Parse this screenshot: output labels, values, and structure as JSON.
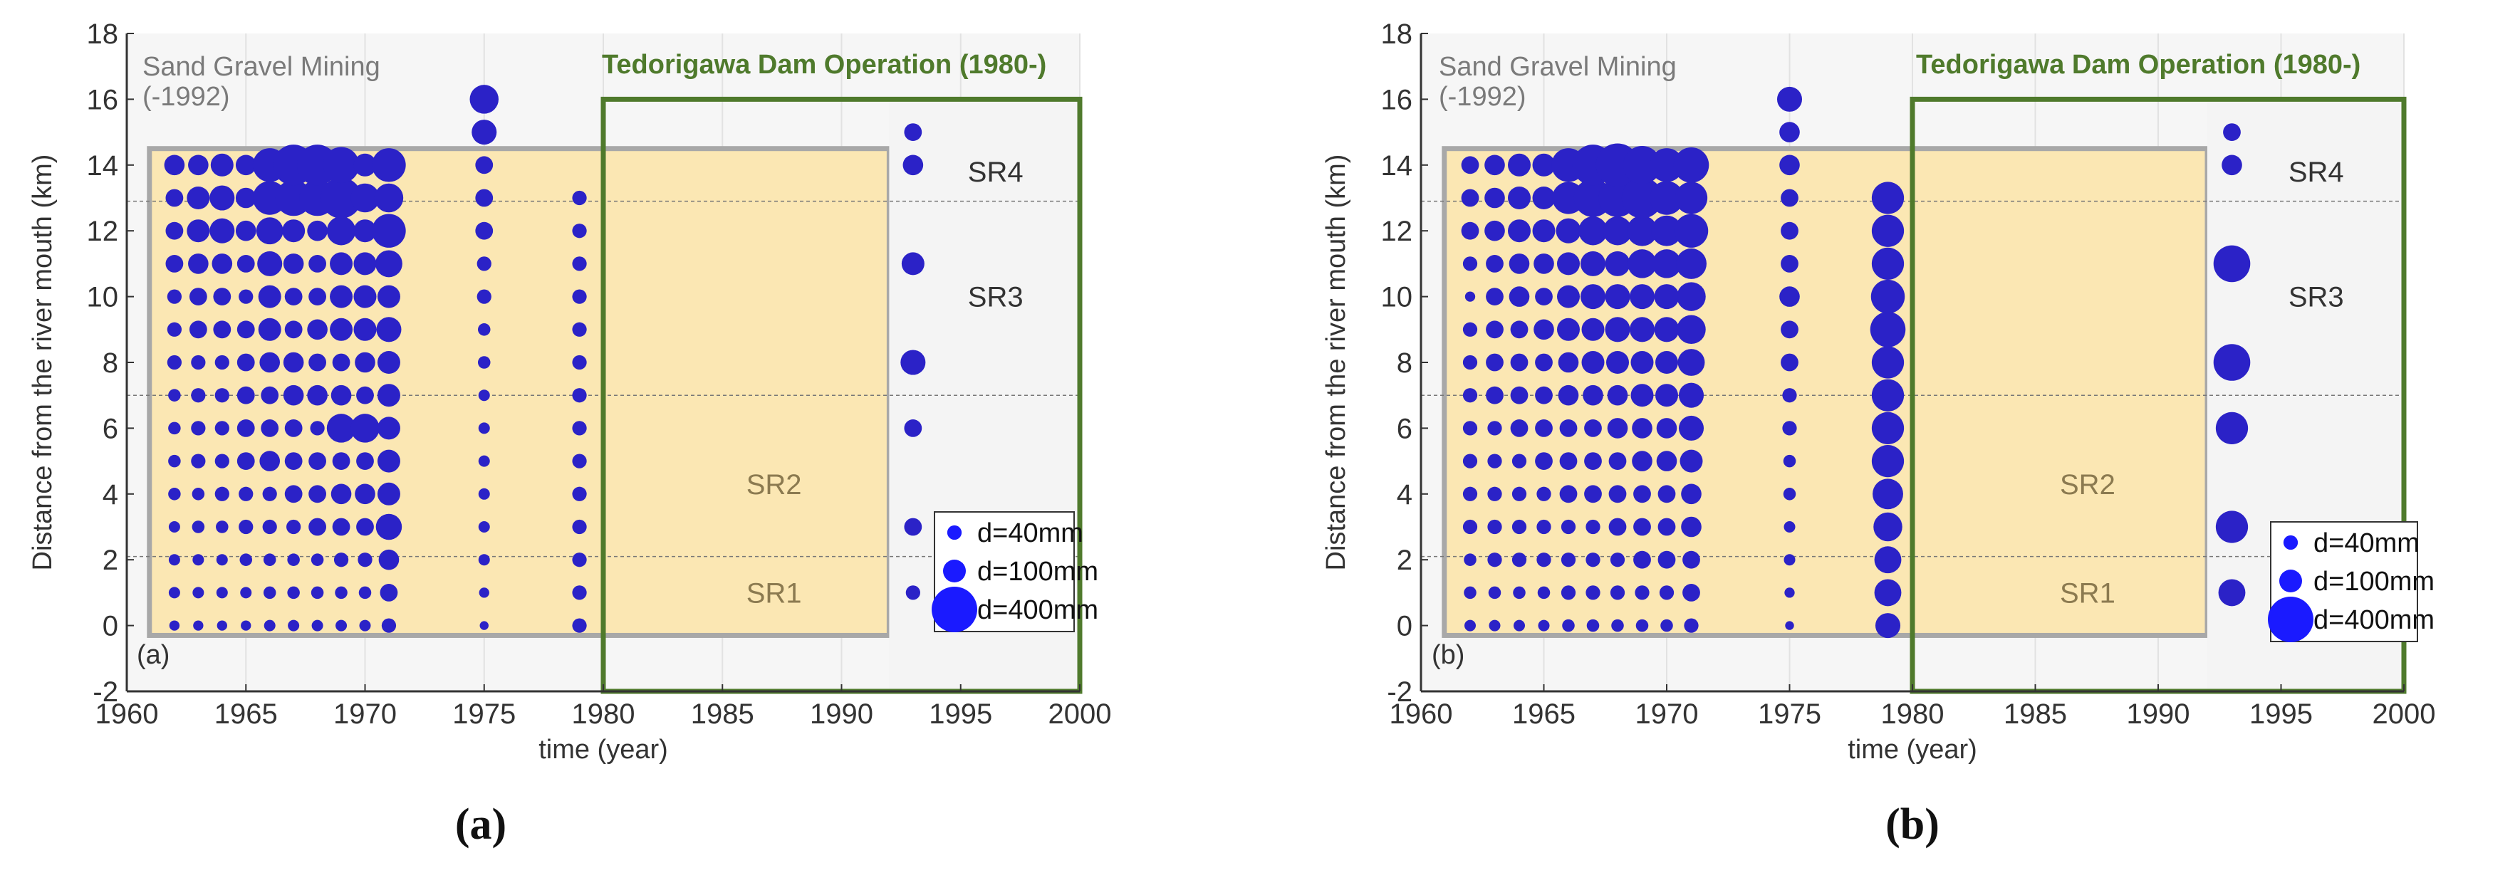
{
  "figure": {
    "caption_a": "(a)",
    "caption_b": "(b)"
  },
  "colors": {
    "marker": "#2b22c7",
    "mining_fill": "#fbe7b3",
    "mining_border": "#a8a8a8",
    "dam_border": "#4f7a2c",
    "dam_fill": "#f4f4f4",
    "axis": "#333333",
    "text_gray": "#7a7a7a",
    "sr_text": "#8b7a50",
    "dam_text": "#4f7a2c"
  },
  "chart_data": [
    {
      "type": "scatter",
      "panel_label": "(a)",
      "xlabel": "time (year)",
      "ylabel": "Distance from the river mouth (km)",
      "xlim": [
        1960,
        2000
      ],
      "ylim": [
        -2,
        18
      ],
      "xticks": [
        1960,
        1965,
        1970,
        1975,
        1980,
        1985,
        1990,
        1995,
        2000
      ],
      "yticks": [
        -2,
        0,
        2,
        4,
        6,
        8,
        10,
        12,
        14,
        16,
        18
      ],
      "mining_label_1": "Sand Gravel Mining",
      "mining_label_2": "(-1992)",
      "mining_period": [
        1960,
        1992
      ],
      "mining_range_km": [
        -0.3,
        14.5
      ],
      "dam_label": "Tedorigawa Dam Operation (1980-)",
      "dam_period": [
        1980,
        2000
      ],
      "dam_range_km": [
        -2,
        16
      ],
      "segments": [
        {
          "name": "SR4",
          "y": 13.8,
          "x": 1995.3
        },
        {
          "name": "SR3",
          "y": 10.0,
          "x": 1995.3
        },
        {
          "name": "SR2",
          "y": 4.3,
          "x": 1986
        },
        {
          "name": "SR1",
          "y": 1.0,
          "x": 1986
        }
      ],
      "boundaries_km": [
        12.9,
        7.0,
        2.1
      ],
      "size_unit": "d (mm)",
      "legend": [
        {
          "label": "d=40mm",
          "d": 40
        },
        {
          "label": "d=100mm",
          "d": 100
        },
        {
          "label": "d=400mm",
          "d": 400
        }
      ],
      "series": [
        {
          "year": 1962,
          "km": [
            0,
            1,
            2,
            3,
            4,
            5,
            6,
            7,
            8,
            9,
            10,
            11,
            12,
            13,
            14
          ],
          "d": [
            20,
            25,
            25,
            25,
            30,
            30,
            30,
            30,
            40,
            40,
            40,
            60,
            60,
            60,
            80
          ]
        },
        {
          "year": 1963,
          "km": [
            0,
            1,
            2,
            3,
            4,
            5,
            6,
            7,
            8,
            9,
            10,
            11,
            12,
            13,
            14
          ],
          "d": [
            20,
            25,
            25,
            30,
            30,
            40,
            40,
            40,
            40,
            60,
            60,
            80,
            100,
            100,
            80
          ]
        },
        {
          "year": 1964,
          "km": [
            0,
            1,
            2,
            3,
            4,
            5,
            6,
            7,
            8,
            9,
            10,
            11,
            12,
            13,
            14
          ],
          "d": [
            20,
            25,
            25,
            30,
            40,
            40,
            40,
            40,
            40,
            60,
            60,
            80,
            120,
            120,
            100
          ]
        },
        {
          "year": 1965,
          "km": [
            0,
            1,
            2,
            3,
            4,
            5,
            6,
            7,
            8,
            9,
            10,
            11,
            12,
            13,
            14
          ],
          "d": [
            20,
            25,
            30,
            40,
            40,
            60,
            60,
            60,
            60,
            60,
            40,
            60,
            80,
            80,
            80
          ]
        },
        {
          "year": 1966,
          "km": [
            0,
            1,
            2,
            3,
            4,
            5,
            6,
            7,
            8,
            9,
            10,
            11,
            12,
            13,
            14
          ],
          "d": [
            25,
            30,
            30,
            40,
            40,
            80,
            60,
            60,
            80,
            100,
            100,
            120,
            140,
            220,
            220
          ]
        },
        {
          "year": 1967,
          "km": [
            0,
            1,
            2,
            3,
            4,
            5,
            6,
            7,
            8,
            9,
            10,
            11,
            12,
            13,
            14
          ],
          "d": [
            25,
            30,
            30,
            40,
            60,
            60,
            60,
            80,
            80,
            60,
            60,
            80,
            100,
            250,
            320
          ]
        },
        {
          "year": 1968,
          "km": [
            0,
            1,
            2,
            3,
            4,
            5,
            6,
            7,
            8,
            9,
            10,
            11,
            12,
            13,
            14
          ],
          "d": [
            25,
            30,
            30,
            60,
            60,
            60,
            40,
            80,
            60,
            80,
            60,
            60,
            80,
            250,
            320
          ]
        },
        {
          "year": 1969,
          "km": [
            0,
            1,
            2,
            3,
            4,
            5,
            6,
            7,
            8,
            9,
            10,
            11,
            12,
            13,
            14
          ],
          "d": [
            25,
            30,
            40,
            60,
            80,
            60,
            160,
            80,
            60,
            100,
            100,
            100,
            160,
            320,
            250
          ]
        },
        {
          "year": 1970,
          "km": [
            0,
            1,
            2,
            3,
            4,
            5,
            6,
            7,
            8,
            9,
            10,
            11,
            12,
            13,
            14
          ],
          "d": [
            25,
            30,
            40,
            60,
            80,
            60,
            160,
            60,
            80,
            100,
            100,
            100,
            100,
            160,
            100
          ]
        },
        {
          "year": 1971,
          "km": [
            0,
            1,
            2,
            3,
            4,
            5,
            6,
            7,
            8,
            9,
            10,
            11,
            12,
            13,
            14
          ],
          "d": [
            40,
            60,
            80,
            130,
            100,
            100,
            100,
            100,
            100,
            120,
            100,
            140,
            220,
            160,
            220
          ]
        },
        {
          "year": 1975,
          "km": [
            0,
            1,
            2,
            3,
            4,
            5,
            6,
            7,
            8,
            9,
            10,
            11,
            12,
            13,
            14,
            15,
            16
          ],
          "d": [
            15,
            20,
            25,
            25,
            25,
            25,
            25,
            25,
            30,
            30,
            40,
            40,
            60,
            60,
            60,
            120,
            160
          ]
        },
        {
          "year": 1979,
          "km": [
            0,
            1,
            2,
            3,
            4,
            5,
            6,
            7,
            8,
            9,
            10,
            11,
            12,
            13
          ],
          "d": [
            40,
            40,
            40,
            40,
            40,
            40,
            40,
            40,
            40,
            40,
            40,
            40,
            40,
            40
          ]
        },
        {
          "year": 1993,
          "km": [
            1,
            3,
            6,
            8,
            11,
            14,
            15
          ],
          "d": [
            40,
            60,
            60,
            120,
            100,
            80,
            60
          ]
        }
      ]
    },
    {
      "type": "scatter",
      "panel_label": "(b)",
      "xlabel": "time (year)",
      "ylabel": "Distance from the river mouth (km)",
      "xlim": [
        1960,
        2000
      ],
      "ylim": [
        -2,
        18
      ],
      "xticks": [
        1960,
        1965,
        1970,
        1975,
        1980,
        1985,
        1990,
        1995,
        2000
      ],
      "yticks": [
        -2,
        0,
        2,
        4,
        6,
        8,
        10,
        12,
        14,
        16,
        18
      ],
      "mining_label_1": "Sand Gravel Mining",
      "mining_label_2": "(-1992)",
      "mining_period": [
        1960,
        1992
      ],
      "mining_range_km": [
        -0.3,
        14.5
      ],
      "dam_label": "Tedorigawa Dam Operation (1980-)",
      "dam_period": [
        1980,
        2000
      ],
      "dam_range_km": [
        -2,
        16
      ],
      "segments": [
        {
          "name": "SR4",
          "y": 13.8,
          "x": 1995.3
        },
        {
          "name": "SR3",
          "y": 10.0,
          "x": 1995.3
        },
        {
          "name": "SR2",
          "y": 4.3,
          "x": 1986
        },
        {
          "name": "SR1",
          "y": 1.0,
          "x": 1986
        }
      ],
      "boundaries_km": [
        12.9,
        7.0,
        2.1
      ],
      "size_unit": "d (mm)",
      "legend": [
        {
          "label": "d=40mm",
          "d": 40
        },
        {
          "label": "d=100mm",
          "d": 100
        },
        {
          "label": "d=400mm",
          "d": 400
        }
      ],
      "series": [
        {
          "year": 1962,
          "km": [
            0,
            1,
            2,
            3,
            4,
            5,
            6,
            7,
            8,
            9,
            10,
            11,
            12,
            13,
            14
          ],
          "d": [
            25,
            30,
            30,
            40,
            40,
            40,
            40,
            40,
            40,
            40,
            20,
            40,
            60,
            60,
            60
          ]
        },
        {
          "year": 1963,
          "km": [
            0,
            1,
            2,
            3,
            4,
            5,
            6,
            7,
            8,
            9,
            10,
            11,
            12,
            13,
            14
          ],
          "d": [
            25,
            30,
            40,
            40,
            40,
            40,
            40,
            60,
            60,
            60,
            60,
            60,
            80,
            80,
            80
          ]
        },
        {
          "year": 1964,
          "km": [
            0,
            1,
            2,
            3,
            4,
            5,
            6,
            7,
            8,
            9,
            10,
            11,
            12,
            13,
            14
          ],
          "d": [
            25,
            30,
            40,
            40,
            40,
            40,
            60,
            60,
            60,
            60,
            80,
            80,
            100,
            100,
            100
          ]
        },
        {
          "year": 1965,
          "km": [
            0,
            1,
            2,
            3,
            4,
            5,
            6,
            7,
            8,
            9,
            10,
            11,
            12,
            13,
            14
          ],
          "d": [
            25,
            30,
            40,
            40,
            40,
            60,
            60,
            60,
            60,
            80,
            60,
            80,
            100,
            100,
            100
          ]
        },
        {
          "year": 1966,
          "km": [
            0,
            1,
            2,
            3,
            4,
            5,
            6,
            7,
            8,
            9,
            10,
            11,
            12,
            13,
            14
          ],
          "d": [
            30,
            40,
            40,
            40,
            60,
            60,
            60,
            80,
            80,
            100,
            100,
            100,
            120,
            200,
            220
          ]
        },
        {
          "year": 1967,
          "km": [
            0,
            1,
            2,
            3,
            4,
            5,
            6,
            7,
            8,
            9,
            10,
            11,
            12,
            13,
            14
          ],
          "d": [
            30,
            40,
            40,
            40,
            60,
            60,
            60,
            80,
            100,
            100,
            120,
            120,
            160,
            280,
            320
          ]
        },
        {
          "year": 1968,
          "km": [
            0,
            1,
            2,
            3,
            4,
            5,
            6,
            7,
            8,
            9,
            10,
            11,
            12,
            13,
            14
          ],
          "d": [
            30,
            40,
            40,
            60,
            60,
            60,
            80,
            80,
            100,
            120,
            120,
            120,
            160,
            280,
            360
          ]
        },
        {
          "year": 1969,
          "km": [
            0,
            1,
            2,
            3,
            4,
            5,
            6,
            7,
            8,
            9,
            10,
            11,
            12,
            13,
            14
          ],
          "d": [
            30,
            40,
            60,
            60,
            60,
            80,
            80,
            100,
            100,
            120,
            120,
            160,
            180,
            320,
            280
          ]
        },
        {
          "year": 1970,
          "km": [
            0,
            1,
            2,
            3,
            4,
            5,
            6,
            7,
            8,
            9,
            10,
            11,
            12,
            13,
            14
          ],
          "d": [
            30,
            40,
            60,
            60,
            60,
            80,
            80,
            100,
            100,
            120,
            120,
            160,
            180,
            220,
            220
          ]
        },
        {
          "year": 1971,
          "km": [
            0,
            1,
            2,
            3,
            4,
            5,
            6,
            7,
            8,
            9,
            10,
            11,
            12,
            13,
            14
          ],
          "d": [
            40,
            60,
            60,
            80,
            80,
            100,
            120,
            120,
            140,
            160,
            160,
            180,
            220,
            200,
            240
          ]
        },
        {
          "year": 1975,
          "km": [
            0,
            1,
            2,
            3,
            4,
            5,
            6,
            7,
            8,
            9,
            10,
            11,
            12,
            13,
            14,
            15,
            16
          ],
          "d": [
            15,
            20,
            25,
            25,
            30,
            30,
            40,
            40,
            60,
            60,
            80,
            60,
            60,
            60,
            80,
            80,
            120
          ]
        },
        {
          "year": 1979,
          "km": [
            0,
            1,
            2,
            3,
            4,
            5,
            6,
            7,
            8,
            9,
            10,
            11,
            12,
            13
          ],
          "d": [
            120,
            140,
            140,
            160,
            180,
            200,
            200,
            200,
            200,
            240,
            220,
            200,
            200,
            200
          ]
        },
        {
          "year": 1993,
          "km": [
            1,
            3,
            6,
            8,
            11,
            14,
            15
          ],
          "d": [
            140,
            200,
            200,
            260,
            260,
            80,
            60
          ]
        }
      ]
    }
  ]
}
